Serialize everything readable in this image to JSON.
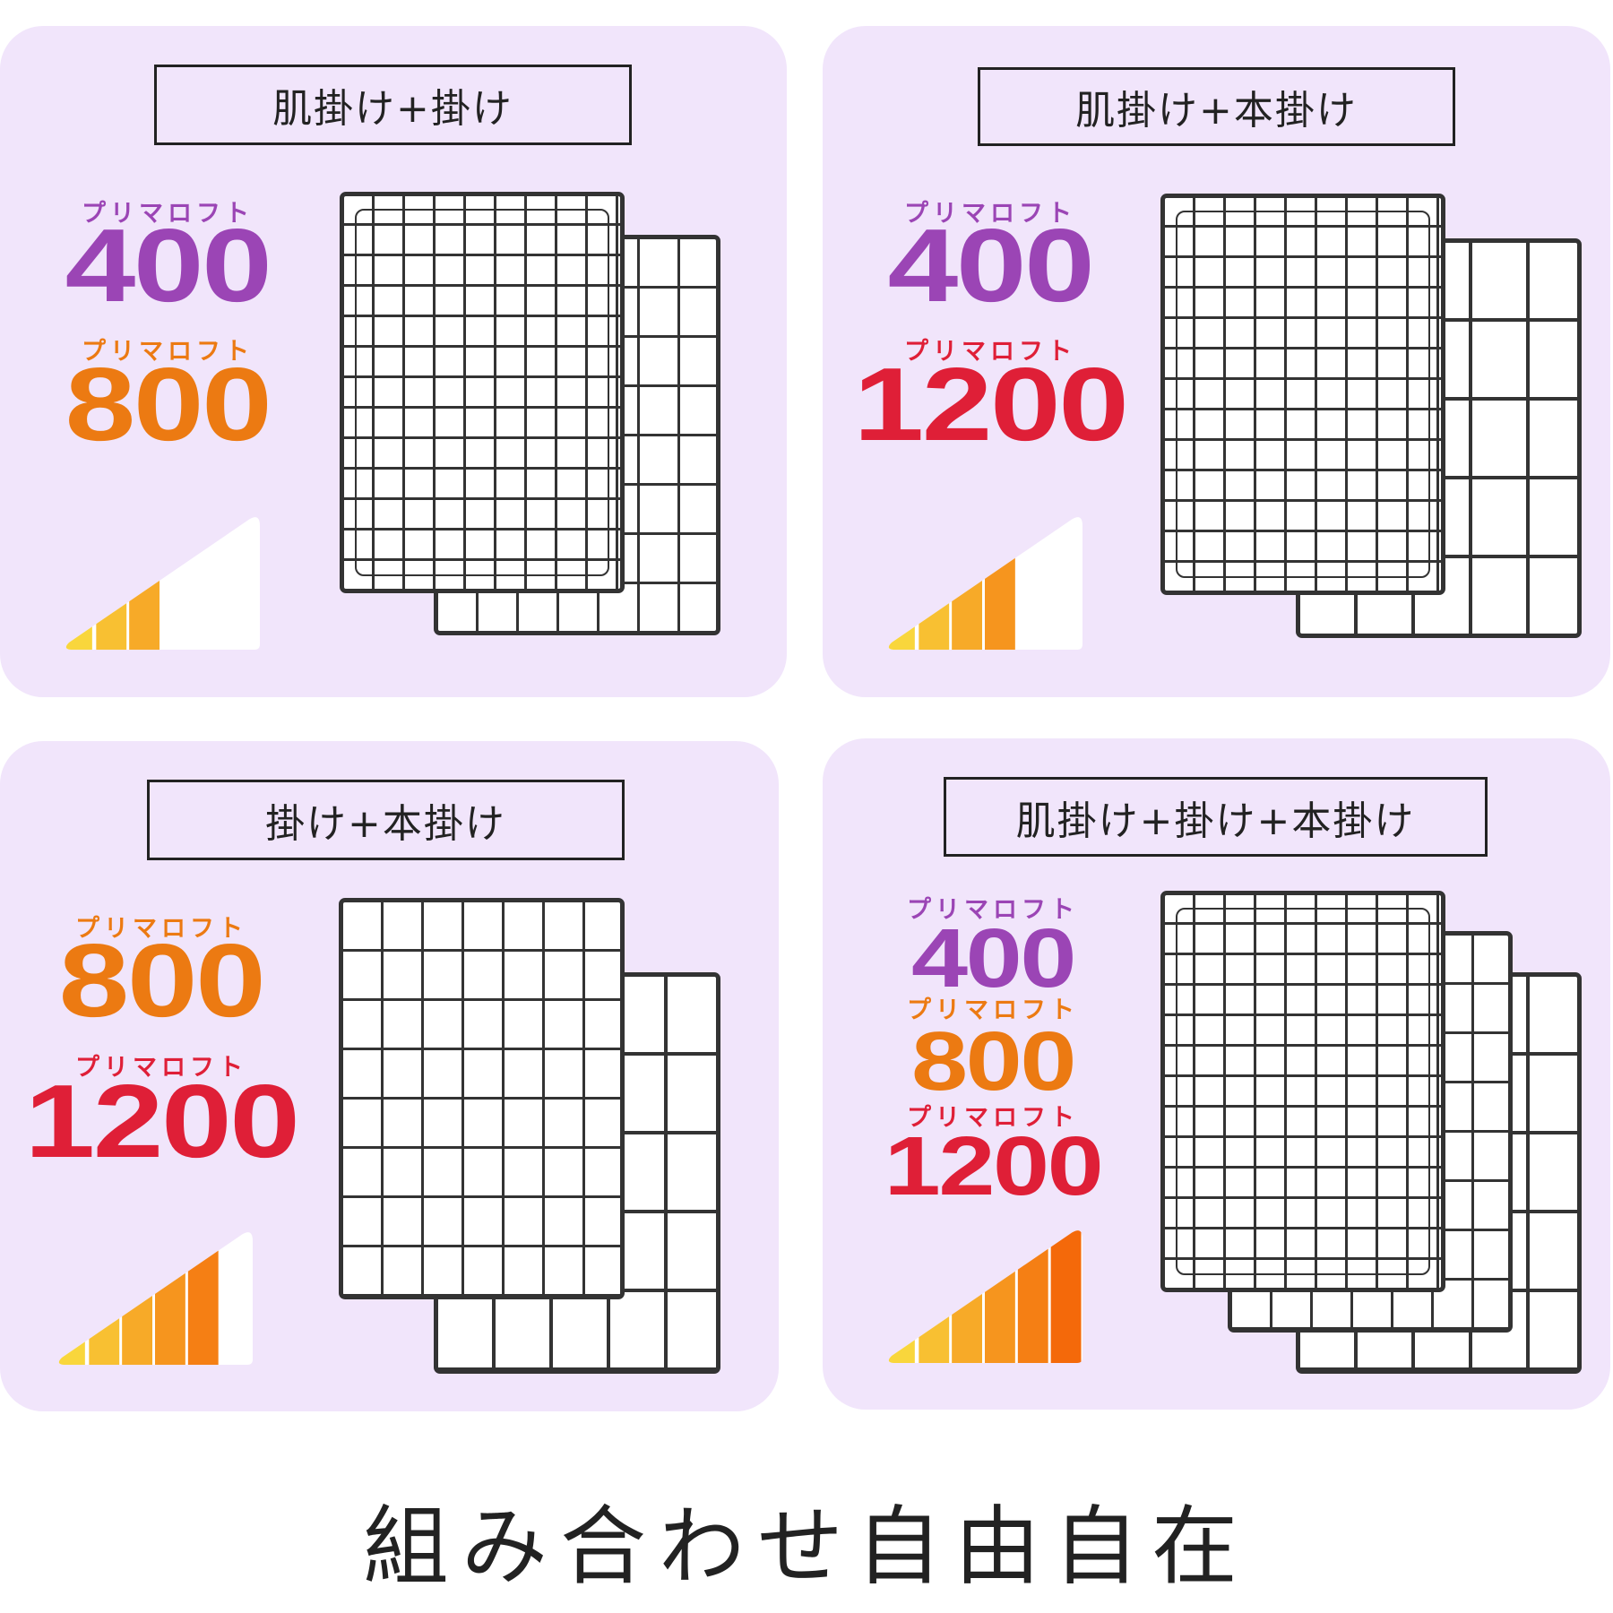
{
  "colors": {
    "panel_bg": "#f1e5fb",
    "purple": "#9b45b5",
    "orange": "#ec7a12",
    "red": "#df1f37",
    "bar_start": "#f9d63c",
    "bar_end": "#f4690a"
  },
  "warmth_bars_total": 6,
  "panels": [
    {
      "title": "肌掛け+掛け",
      "labels": [
        {
          "kana": "プリマロフト",
          "number": "400",
          "color": "purple"
        },
        {
          "kana": "プリマロフト",
          "number": "800",
          "color": "orange"
        }
      ],
      "warmth_level": 3,
      "sheets": [
        "medium",
        "fine"
      ]
    },
    {
      "title": "肌掛け+本掛け",
      "labels": [
        {
          "kana": "プリマロフト",
          "number": "400",
          "color": "purple"
        },
        {
          "kana": "プリマロフト",
          "number": "1200",
          "color": "red"
        }
      ],
      "warmth_level": 4,
      "sheets": [
        "large",
        "fine"
      ]
    },
    {
      "title": "掛け+本掛け",
      "labels": [
        {
          "kana": "プリマロフト",
          "number": "800",
          "color": "orange"
        },
        {
          "kana": "プリマロフト",
          "number": "1200",
          "color": "red"
        }
      ],
      "warmth_level": 5,
      "sheets": [
        "large",
        "medium"
      ]
    },
    {
      "title": "肌掛け+掛け+本掛け",
      "labels": [
        {
          "kana": "プリマロフト",
          "number": "400",
          "color": "purple"
        },
        {
          "kana": "プリマロフト",
          "number": "800",
          "color": "orange"
        },
        {
          "kana": "プリマロフト",
          "number": "1200",
          "color": "red"
        }
      ],
      "warmth_level": 6,
      "sheets": [
        "large",
        "medium",
        "fine"
      ]
    }
  ],
  "caption": "組み合わせ自由自在"
}
